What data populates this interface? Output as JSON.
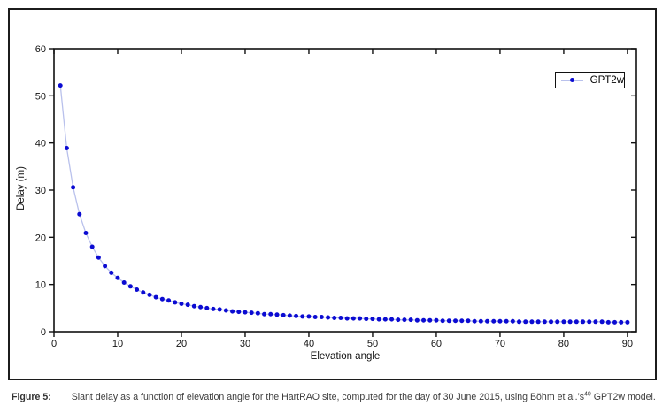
{
  "figure": {
    "caption_label": "Figure 5:",
    "caption_text": "Slant delay as a function of elevation angle for the HartRAO site, computed for the day of 30 June 2015, using Böhm et al.’s",
    "caption_sup": "40",
    "caption_tail": " GPT2w model."
  },
  "chart_data": {
    "type": "line",
    "title": "",
    "xlabel": "Elevation angle",
    "ylabel": "Delay (m)",
    "xlim": [
      0,
      91.4
    ],
    "ylim": [
      0,
      60
    ],
    "x_ticks": [
      0,
      10,
      20,
      30,
      40,
      50,
      60,
      70,
      80,
      90
    ],
    "y_ticks": [
      0,
      10,
      20,
      30,
      40,
      50,
      60
    ],
    "grid": false,
    "legend": {
      "position": "top-right"
    },
    "axis_color": "#111111",
    "series": [
      {
        "name": "GPT2w",
        "marker": "filled-circle",
        "marker_color": "#0b0bd2",
        "line_color": "#b9c1ec",
        "x": [
          1,
          2,
          3,
          4,
          5,
          6,
          7,
          8,
          9,
          10,
          11,
          12,
          13,
          14,
          15,
          16,
          17,
          18,
          19,
          20,
          21,
          22,
          23,
          24,
          25,
          26,
          27,
          28,
          29,
          30,
          31,
          32,
          33,
          34,
          35,
          36,
          37,
          38,
          39,
          40,
          41,
          42,
          43,
          44,
          45,
          46,
          47,
          48,
          49,
          50,
          51,
          52,
          53,
          54,
          55,
          56,
          57,
          58,
          59,
          60,
          61,
          62,
          63,
          64,
          65,
          66,
          67,
          68,
          69,
          70,
          71,
          72,
          73,
          74,
          75,
          76,
          77,
          78,
          79,
          80,
          81,
          82,
          83,
          84,
          85,
          86,
          87,
          88,
          89,
          90
        ],
        "y": [
          52.2,
          38.9,
          30.6,
          24.9,
          20.9,
          18.0,
          15.7,
          13.9,
          12.5,
          11.4,
          10.4,
          9.6,
          8.9,
          8.3,
          7.8,
          7.3,
          6.9,
          6.6,
          6.2,
          5.9,
          5.7,
          5.4,
          5.2,
          5.0,
          4.8,
          4.7,
          4.5,
          4.3,
          4.2,
          4.1,
          4.0,
          3.9,
          3.7,
          3.7,
          3.6,
          3.5,
          3.4,
          3.3,
          3.2,
          3.2,
          3.1,
          3.1,
          3.0,
          2.9,
          2.9,
          2.8,
          2.8,
          2.8,
          2.7,
          2.7,
          2.6,
          2.6,
          2.6,
          2.5,
          2.5,
          2.5,
          2.4,
          2.4,
          2.4,
          2.4,
          2.3,
          2.3,
          2.3,
          2.3,
          2.3,
          2.2,
          2.2,
          2.2,
          2.2,
          2.2,
          2.2,
          2.2,
          2.1,
          2.1,
          2.1,
          2.1,
          2.1,
          2.1,
          2.1,
          2.1,
          2.1,
          2.1,
          2.1,
          2.1,
          2.1,
          2.1,
          2.0,
          2.0,
          2.0,
          2.0
        ]
      }
    ]
  }
}
